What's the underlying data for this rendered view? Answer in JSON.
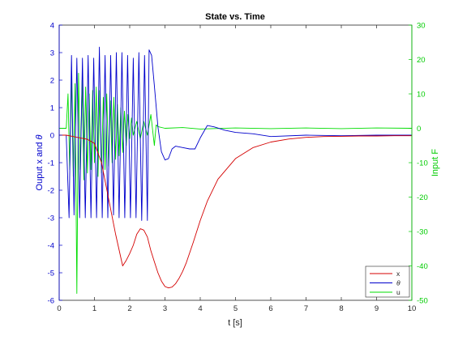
{
  "chart_data": {
    "type": "line",
    "title": "State vs. Time",
    "xlabel": "t [s]",
    "ylabel_left_prefix": "Ouput x and ",
    "ylabel_left_symbol": "θ",
    "ylabel_right": "Input F",
    "xlim": [
      0,
      10
    ],
    "ylim_left": [
      -6,
      4
    ],
    "ylim_right": [
      -50,
      30
    ],
    "xticks": [
      "0",
      "1",
      "2",
      "3",
      "4",
      "5",
      "6",
      "7",
      "8",
      "9",
      "10"
    ],
    "yticks_left": [
      "4",
      "3",
      "2",
      "1",
      "0",
      "-1",
      "-2",
      "-3",
      "-4",
      "-5",
      "-6"
    ],
    "yticks_right": [
      "30",
      "20",
      "10",
      "0",
      "-10",
      "-20",
      "-30",
      "-40",
      "-50"
    ],
    "grid": false,
    "legend_position": "bottom-right",
    "series": [
      {
        "name": "x",
        "axis": "left",
        "color": "#d40000",
        "x": [
          0,
          0.2,
          0.4,
          0.6,
          0.8,
          1.0,
          1.2,
          1.4,
          1.6,
          1.8,
          1.9,
          2.0,
          2.1,
          2.2,
          2.3,
          2.4,
          2.5,
          2.6,
          2.7,
          2.8,
          2.9,
          3.0,
          3.1,
          3.2,
          3.3,
          3.4,
          3.5,
          3.6,
          3.8,
          4.0,
          4.2,
          4.5,
          5.0,
          5.5,
          6.0,
          6.5,
          7.0,
          7.5,
          8.0,
          8.5,
          9.0,
          9.5,
          10.0
        ],
        "y": [
          0,
          0.0,
          -0.05,
          -0.1,
          -0.15,
          -0.3,
          -1.0,
          -2.3,
          -3.6,
          -4.75,
          -4.55,
          -4.3,
          -4.0,
          -3.6,
          -3.4,
          -3.45,
          -3.7,
          -4.2,
          -4.6,
          -5.0,
          -5.3,
          -5.5,
          -5.55,
          -5.52,
          -5.4,
          -5.2,
          -4.95,
          -4.65,
          -3.9,
          -3.1,
          -2.4,
          -1.6,
          -0.85,
          -0.45,
          -0.25,
          -0.14,
          -0.08,
          -0.05,
          -0.04,
          -0.03,
          -0.03,
          -0.02,
          -0.02
        ]
      },
      {
        "name": "θ",
        "axis": "left",
        "color": "#0000cc",
        "x": [
          0,
          0.2,
          0.28,
          0.35,
          0.42,
          0.5,
          0.58,
          0.66,
          0.74,
          0.82,
          0.9,
          0.98,
          1.06,
          1.14,
          1.22,
          1.3,
          1.38,
          1.46,
          1.54,
          1.62,
          1.7,
          1.78,
          1.86,
          1.94,
          2.02,
          2.1,
          2.18,
          2.26,
          2.34,
          2.42,
          2.5,
          2.55,
          2.62,
          2.7,
          2.8,
          2.9,
          3.0,
          3.1,
          3.2,
          3.3,
          3.5,
          3.7,
          3.85,
          4.0,
          4.2,
          4.4,
          4.7,
          5.0,
          5.5,
          6.0,
          7.0,
          8.0,
          9.0,
          10.0
        ],
        "y": [
          0,
          0,
          -3.0,
          2.9,
          -2.9,
          2.8,
          -3.0,
          2.8,
          -3.0,
          2.9,
          -3.0,
          2.8,
          -3.0,
          3.2,
          -3.0,
          2.9,
          -3.0,
          2.9,
          -2.9,
          3.0,
          -3.0,
          3.0,
          -3.0,
          2.9,
          -3.0,
          2.8,
          -3.0,
          3.0,
          -3.1,
          2.9,
          -3.1,
          3.1,
          2.9,
          1.8,
          0.3,
          -0.6,
          -0.9,
          -0.85,
          -0.5,
          -0.4,
          -0.45,
          -0.5,
          -0.5,
          -0.1,
          0.35,
          0.3,
          0.18,
          0.1,
          0.05,
          -0.05,
          0.0,
          -0.02,
          0.0,
          0.0
        ]
      },
      {
        "name": "u",
        "axis": "right",
        "color": "#00dd00",
        "x": [
          0,
          0.2,
          0.25,
          0.3,
          0.35,
          0.4,
          0.45,
          0.5,
          0.55,
          0.6,
          0.65,
          0.7,
          0.75,
          0.8,
          0.85,
          0.9,
          0.95,
          1.0,
          1.05,
          1.1,
          1.15,
          1.2,
          1.25,
          1.3,
          1.35,
          1.4,
          1.45,
          1.5,
          1.55,
          1.6,
          1.65,
          1.7,
          1.75,
          1.8,
          1.85,
          1.9,
          1.95,
          2.0,
          2.05,
          2.1,
          2.2,
          2.3,
          2.4,
          2.5,
          2.6,
          2.7,
          2.75,
          2.8,
          3.0,
          3.5,
          4.0,
          5.0,
          6.0,
          7.0,
          8.0,
          9.0,
          10.0
        ],
        "y": [
          0,
          0,
          10,
          -12,
          15,
          -14,
          13,
          -48,
          16,
          -12,
          14,
          -15,
          12,
          -13,
          10,
          -12,
          11,
          -10,
          12,
          -14,
          11,
          -13,
          9,
          -12,
          10,
          -11,
          8,
          -10,
          9,
          -9,
          7,
          -8,
          6,
          -7,
          5,
          -5,
          4,
          -3,
          3,
          -2,
          2,
          -3,
          2,
          -2,
          4,
          -5,
          1,
          0.5,
          0,
          0.2,
          -0.2,
          0.1,
          -0.1,
          0.1,
          -0.1,
          0.1,
          0
        ]
      }
    ]
  }
}
